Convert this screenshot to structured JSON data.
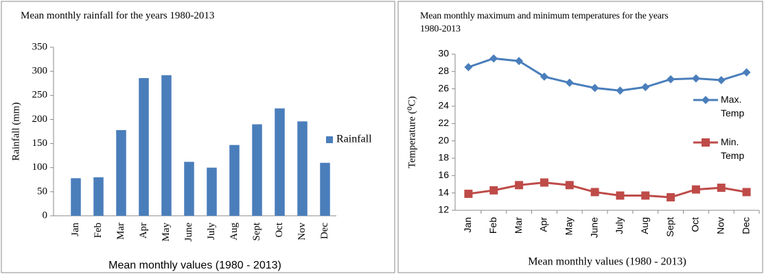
{
  "chart_data": [
    {
      "type": "bar",
      "title": "Mean monthly rainfall for the years 1980-2013",
      "y_label": "Rainfall (mm)",
      "x_label": "Mean monthly values  (1980 - 2013)",
      "categories": [
        "Jan",
        "Feb",
        "Mar",
        "Apr",
        "May",
        "June",
        "July",
        "Aug",
        "Sept",
        "Oct",
        "Nov",
        "Dec"
      ],
      "series": [
        {
          "name": "Rainfall",
          "color": "#4a7ebb",
          "values": [
            78,
            80,
            178,
            286,
            292,
            112,
            100,
            147,
            190,
            223,
            196,
            110
          ]
        }
      ],
      "ylim": [
        0,
        350
      ],
      "yticks": [
        0,
        50,
        100,
        150,
        200,
        250,
        300,
        350
      ],
      "legend": "right"
    },
    {
      "type": "line",
      "title": "Mean monthly maximum and minimum temperatures for the years 1980-2013",
      "y_label": "Temperature (⁰C)",
      "x_label": "Mean monthly values (1980 - 2013)",
      "categories": [
        "Jan",
        "Feb",
        "Mar",
        "Apr",
        "May",
        "June",
        "July",
        "Aug",
        "Sept",
        "Oct",
        "Nov",
        "Dec"
      ],
      "series": [
        {
          "name": "Max. Temp",
          "color": "#4a7ebb",
          "marker": "diamond",
          "values": [
            28.5,
            29.5,
            29.2,
            27.4,
            26.7,
            26.1,
            25.8,
            26.2,
            27.1,
            27.2,
            27.0,
            27.9
          ]
        },
        {
          "name": "Min. Temp",
          "color": "#be4b48",
          "marker": "square",
          "values": [
            13.9,
            14.3,
            14.9,
            15.2,
            14.9,
            14.1,
            13.7,
            13.7,
            13.5,
            14.4,
            14.6,
            14.1
          ]
        }
      ],
      "ylim": [
        12,
        30
      ],
      "yticks": [
        12,
        14,
        16,
        18,
        20,
        22,
        24,
        26,
        28,
        30
      ],
      "legend": "right"
    }
  ]
}
